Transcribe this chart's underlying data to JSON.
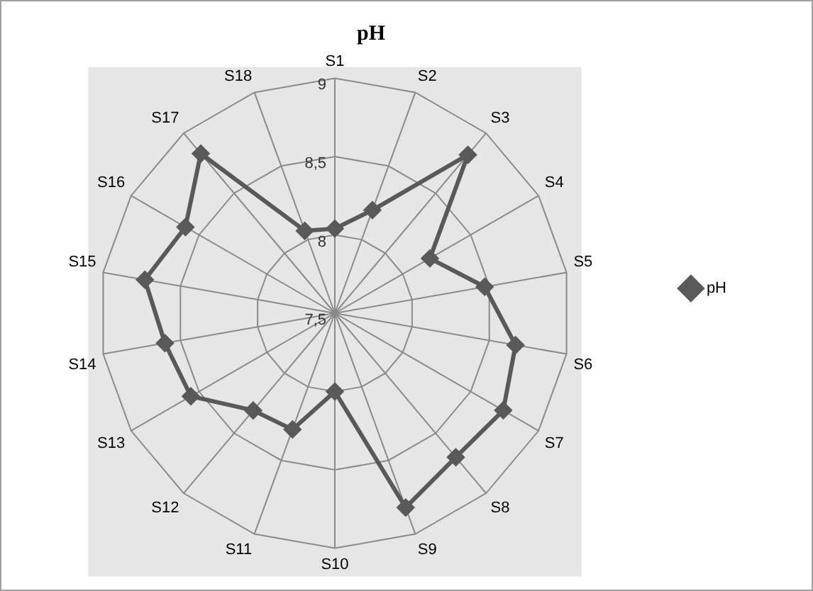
{
  "chart_data": {
    "type": "radar",
    "title": "pH",
    "categories": [
      "S1",
      "S2",
      "S3",
      "S4",
      "S5",
      "S6",
      "S7",
      "S8",
      "S9",
      "S10",
      "S11",
      "S12",
      "S13",
      "S14",
      "S15",
      "S16",
      "S17",
      "S18"
    ],
    "series": [
      {
        "name": "pH",
        "color": "#595959",
        "values": [
          8.04,
          8.2,
          8.82,
          8.2,
          8.47,
          8.67,
          8.74,
          8.7,
          8.82,
          8.0,
          8.29,
          8.31,
          8.56,
          8.6,
          8.73,
          8.6,
          8.83,
          8.06
        ]
      }
    ],
    "ylim": [
      7.5,
      9
    ],
    "yticks": [
      {
        "value": 7.5,
        "label": "7,5"
      },
      8,
      {
        "value": 8.5,
        "label": "8,5"
      },
      9
    ],
    "grid": true,
    "legend": "right",
    "marker": "diamond",
    "line_style": "solid"
  }
}
